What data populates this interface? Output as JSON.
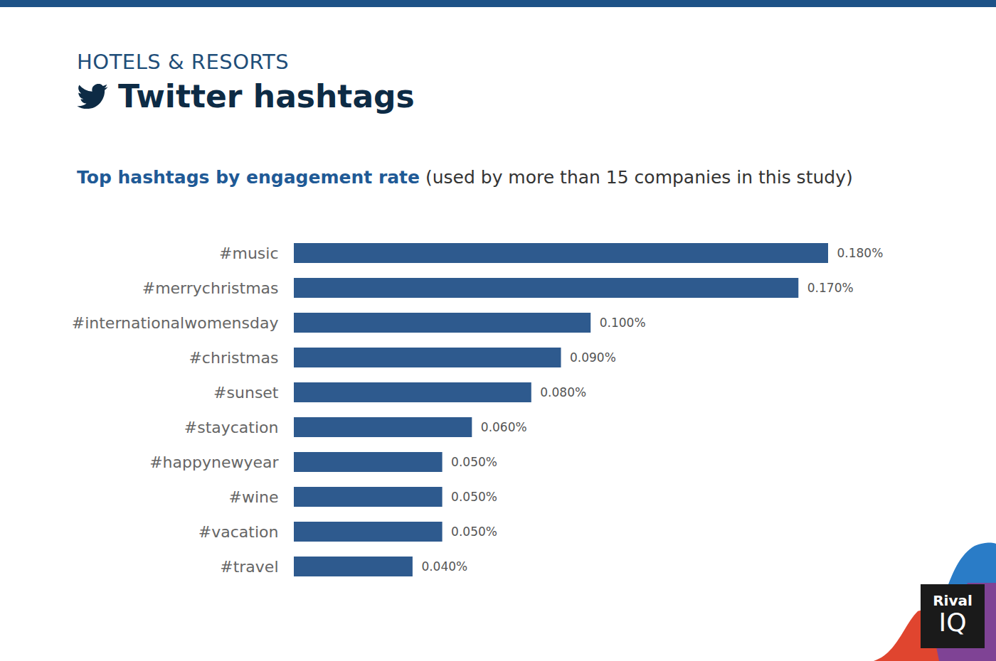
{
  "chart_data": {
    "type": "bar",
    "orientation": "horizontal",
    "section": "HOTELS & RESORTS",
    "title": "Twitter hashtags",
    "subtitle": "Top hashtags by engagement rate",
    "subtitle_note": "(used by more than 15 companies in this study)",
    "logo": [
      "Rival",
      "IQ"
    ],
    "categories": [
      "#music",
      "#merrychristmas",
      "#internationalwomensday",
      "#christmas",
      "#sunset",
      "#staycation",
      "#happynewyear",
      "#wine",
      "#vacation",
      "#travel"
    ],
    "values": [
      0.18,
      0.17,
      0.1,
      0.09,
      0.08,
      0.06,
      0.05,
      0.05,
      0.05,
      0.04
    ],
    "value_labels": [
      "0.180%",
      "0.170%",
      "0.100%",
      "0.090%",
      "0.080%",
      "0.060%",
      "0.050%",
      "0.050%",
      "0.050%",
      "0.040%"
    ],
    "color": "#2e5a8e",
    "data_labels": true,
    "tick_labels": "y",
    "grid": false
  }
}
